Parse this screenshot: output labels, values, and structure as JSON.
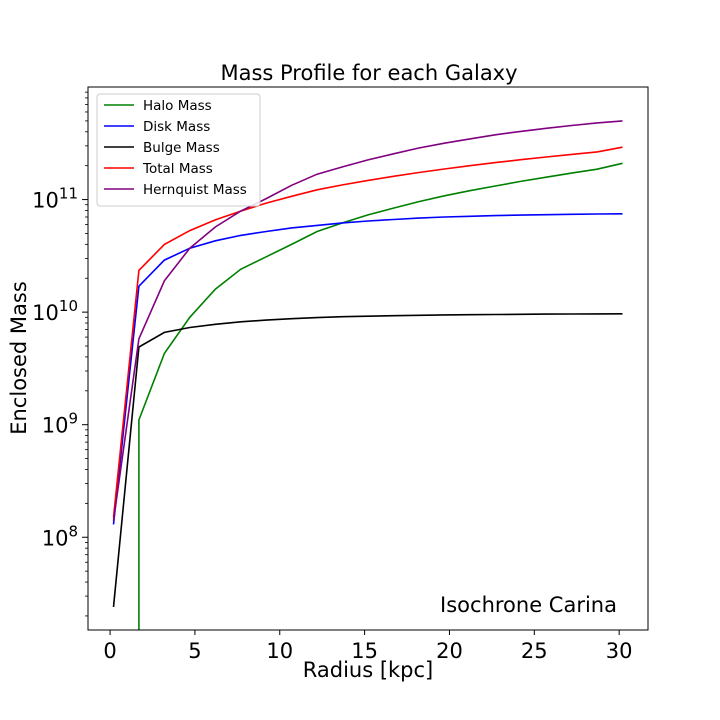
{
  "chart_data": {
    "type": "line",
    "title": "Mass Profile for each Galaxy",
    "xlabel": "Radius [kpc]",
    "ylabel": "Enclosed Mass",
    "annotation": "Isochrone Carina",
    "yscale": "log",
    "xlim": [
      -1.3,
      31.7
    ],
    "ylim": [
      15000000,
      1000000000000
    ],
    "legend_position": "top-left",
    "grid": false,
    "x_ticks": [
      {
        "value": 0,
        "label": "0"
      },
      {
        "value": 5,
        "label": "5"
      },
      {
        "value": 10,
        "label": "10"
      },
      {
        "value": 15,
        "label": "15"
      },
      {
        "value": 20,
        "label": "20"
      },
      {
        "value": 25,
        "label": "25"
      },
      {
        "value": 30,
        "label": "30"
      }
    ],
    "y_ticks": [
      {
        "value": 100000000,
        "base": "10",
        "exp": "8"
      },
      {
        "value": 1000000000,
        "base": "10",
        "exp": "9"
      },
      {
        "value": 10000000000,
        "base": "10",
        "exp": "10"
      },
      {
        "value": 100000000000,
        "base": "10",
        "exp": "11"
      }
    ],
    "series": [
      {
        "name": "Halo Mass",
        "color": "#008000",
        "x": [
          1.7,
          1.7,
          3.2,
          4.7,
          6.2,
          7.7,
          9.2,
          10.7,
          12.2,
          13.7,
          15.2,
          16.7,
          18.2,
          19.7,
          21.2,
          22.7,
          24.2,
          25.7,
          27.2,
          28.7,
          30.2
        ],
        "y": [
          15000000,
          1100000000,
          4300000000,
          9000000000,
          16000000000,
          24000000000,
          31000000000,
          40000000000,
          52000000000,
          62000000000,
          73000000000,
          84000000000,
          96000000000,
          108000000000,
          120000000000,
          132000000000,
          145000000000,
          158000000000,
          172000000000,
          186000000000,
          210000000000
        ]
      },
      {
        "name": "Disk Mass",
        "color": "#0000ff",
        "x": [
          0.2,
          1.7,
          3.2,
          4.7,
          6.2,
          7.7,
          9.2,
          10.7,
          12.2,
          13.7,
          15.2,
          16.7,
          18.2,
          19.7,
          21.2,
          22.7,
          24.2,
          25.7,
          27.2,
          28.7,
          30.2
        ],
        "y": [
          130000000,
          17000000000,
          29000000000,
          37000000000,
          43000000000,
          48000000000,
          52000000000,
          56000000000,
          59000000000,
          62000000000,
          64500000000,
          66500000000,
          68500000000,
          70000000000,
          71000000000,
          72000000000,
          72800000000,
          73400000000,
          74000000000,
          74400000000,
          74800000000
        ]
      },
      {
        "name": "Bulge Mass",
        "color": "#000000",
        "x": [
          0.2,
          1.7,
          3.2,
          4.7,
          6.2,
          7.7,
          9.2,
          10.7,
          12.2,
          13.7,
          15.2,
          16.7,
          18.2,
          19.7,
          21.2,
          22.7,
          24.2,
          25.7,
          27.2,
          28.7,
          30.2
        ],
        "y": [
          24000000,
          4900000000,
          6600000000,
          7300000000,
          7800000000,
          8200000000,
          8500000000,
          8750000000,
          8950000000,
          9100000000,
          9200000000,
          9300000000,
          9380000000,
          9440000000,
          9490000000,
          9530000000,
          9570000000,
          9600000000,
          9630000000,
          9650000000,
          9670000000
        ]
      },
      {
        "name": "Total Mass",
        "color": "#ff0000",
        "x": [
          0.2,
          1.7,
          3.2,
          4.7,
          6.2,
          7.7,
          9.2,
          10.7,
          12.2,
          13.7,
          15.2,
          16.7,
          18.2,
          19.7,
          21.2,
          22.7,
          24.2,
          25.7,
          27.2,
          28.7,
          30.2
        ],
        "y": [
          150000000,
          23500000000,
          40000000000,
          53000000000,
          66000000000,
          79000000000,
          93000000000,
          107000000000,
          122000000000,
          135000000000,
          148000000000,
          161000000000,
          174000000000,
          187000000000,
          200000000000,
          213000000000,
          226000000000,
          239000000000,
          252000000000,
          265000000000,
          292000000000
        ]
      },
      {
        "name": "Hernquist Mass",
        "color": "#800080",
        "x": [
          0.2,
          1.7,
          3.2,
          4.7,
          6.2,
          7.7,
          9.2,
          10.7,
          12.2,
          13.7,
          15.2,
          16.7,
          18.2,
          19.7,
          21.2,
          22.7,
          24.2,
          25.7,
          27.2,
          28.7,
          30.2
        ],
        "y": [
          140000000,
          5800000000,
          19000000000,
          37000000000,
          57000000000,
          79000000000,
          102000000000,
          134000000000,
          168000000000,
          195000000000,
          225000000000,
          255000000000,
          287000000000,
          317000000000,
          346000000000,
          376000000000,
          403000000000,
          430000000000,
          455000000000,
          480000000000,
          500000000000
        ]
      }
    ]
  }
}
